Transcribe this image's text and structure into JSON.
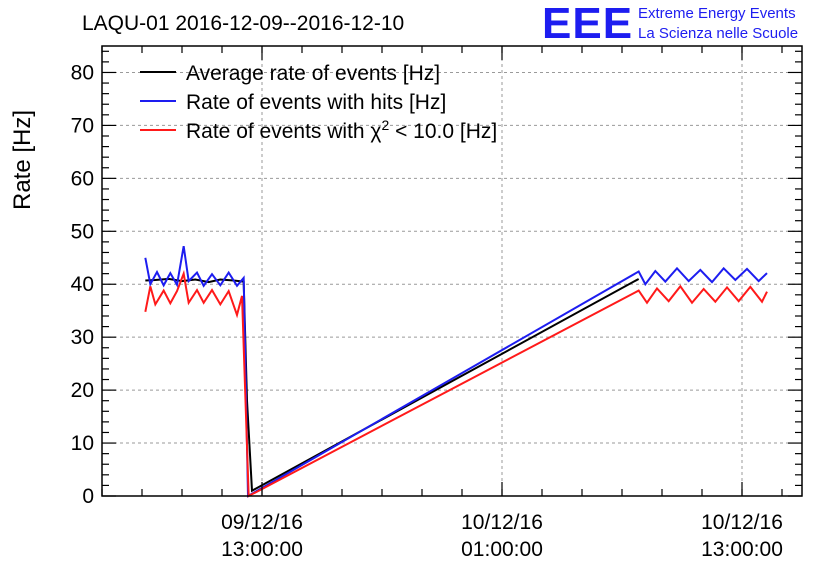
{
  "header": {
    "title": "LAQU-01 2016-12-09--2016-12-10"
  },
  "logo": {
    "mark": "EEE",
    "line1": "Extreme Energy Events",
    "line2": "La Scienza nelle Scuole"
  },
  "chart_data": {
    "type": "line",
    "title": "LAQU-01 2016-12-09--2016-12-10",
    "xlabel": "",
    "ylabel": "Rate [Hz]",
    "ylim": [
      0,
      85
    ],
    "xlim": [
      "2016-12-09 05:00",
      "2016-12-10 16:00"
    ],
    "grid": true,
    "legend_position": "top-left",
    "x_ticks": [
      {
        "value": "2016-12-09 13:00",
        "line1": "09/12/16",
        "line2": "13:00:00"
      },
      {
        "value": "2016-12-10 01:00",
        "line1": "10/12/16",
        "line2": "01:00:00"
      },
      {
        "value": "2016-12-10 13:00",
        "line1": "10/12/16",
        "line2": "13:00:00"
      }
    ],
    "y_ticks": [
      0,
      10,
      20,
      30,
      40,
      50,
      60,
      70,
      80
    ],
    "series": [
      {
        "name": "Average rate of events [Hz]",
        "color": "#000000",
        "points": [
          [
            "2016-12-09 07:10",
            40.7
          ],
          [
            "2016-12-09 07:40",
            40.8
          ],
          [
            "2016-12-09 08:20",
            41.0
          ],
          [
            "2016-12-09 09:00",
            40.6
          ],
          [
            "2016-12-09 09:40",
            40.9
          ],
          [
            "2016-12-09 10:20",
            40.4
          ],
          [
            "2016-12-09 10:55",
            40.9
          ],
          [
            "2016-12-09 11:35",
            40.7
          ],
          [
            "2016-12-09 12:05",
            40.5
          ],
          [
            "2016-12-09 12:15",
            18.0
          ],
          [
            "2016-12-09 12:30",
            1.0
          ],
          [
            "2016-12-10 07:50",
            41.0
          ]
        ]
      },
      {
        "name": "Rate of events with hits [Hz]",
        "color": "#1d1df0",
        "points": [
          [
            "2016-12-09 07:10",
            45.0
          ],
          [
            "2016-12-09 07:25",
            40.0
          ],
          [
            "2016-12-09 07:45",
            42.3
          ],
          [
            "2016-12-09 08:05",
            39.8
          ],
          [
            "2016-12-09 08:25",
            42.1
          ],
          [
            "2016-12-09 08:45",
            39.9
          ],
          [
            "2016-12-09 09:05",
            47.2
          ],
          [
            "2016-12-09 09:20",
            40.6
          ],
          [
            "2016-12-09 09:45",
            42.2
          ],
          [
            "2016-12-09 10:05",
            39.7
          ],
          [
            "2016-12-09 10:30",
            41.9
          ],
          [
            "2016-12-09 10:55",
            39.8
          ],
          [
            "2016-12-09 11:20",
            42.2
          ],
          [
            "2016-12-09 11:45",
            39.7
          ],
          [
            "2016-12-09 12:05",
            41.2
          ],
          [
            "2016-12-09 12:18",
            0.0
          ],
          [
            "2016-12-10 07:50",
            42.4
          ],
          [
            "2016-12-10 08:10",
            40.0
          ],
          [
            "2016-12-10 08:40",
            42.5
          ],
          [
            "2016-12-10 09:10",
            40.5
          ],
          [
            "2016-12-10 09:45",
            43.0
          ],
          [
            "2016-12-10 10:20",
            40.6
          ],
          [
            "2016-12-10 10:55",
            42.7
          ],
          [
            "2016-12-10 11:30",
            40.4
          ],
          [
            "2016-12-10 12:05",
            43.0
          ],
          [
            "2016-12-10 12:40",
            40.8
          ],
          [
            "2016-12-10 13:15",
            42.9
          ],
          [
            "2016-12-10 13:50",
            40.6
          ],
          [
            "2016-12-10 14:15",
            42.1
          ]
        ]
      },
      {
        "name": "Rate of events with χ2 < 10.0 [Hz]",
        "color": "#ff1a1a",
        "points": [
          [
            "2016-12-09 07:10",
            34.8
          ],
          [
            "2016-12-09 07:25",
            39.6
          ],
          [
            "2016-12-09 07:40",
            36.2
          ],
          [
            "2016-12-09 08:05",
            38.8
          ],
          [
            "2016-12-09 08:25",
            36.4
          ],
          [
            "2016-12-09 08:45",
            38.7
          ],
          [
            "2016-12-09 09:05",
            42.0
          ],
          [
            "2016-12-09 09:20",
            36.5
          ],
          [
            "2016-12-09 09:45",
            38.9
          ],
          [
            "2016-12-09 10:05",
            36.5
          ],
          [
            "2016-12-09 10:30",
            38.9
          ],
          [
            "2016-12-09 10:55",
            36.2
          ],
          [
            "2016-12-09 11:20",
            38.7
          ],
          [
            "2016-12-09 11:45",
            34.2
          ],
          [
            "2016-12-09 12:00",
            37.8
          ],
          [
            "2016-12-09 12:20",
            0.0
          ],
          [
            "2016-12-10 07:50",
            38.8
          ],
          [
            "2016-12-10 08:15",
            36.5
          ],
          [
            "2016-12-10 08:45",
            39.2
          ],
          [
            "2016-12-10 09:20",
            36.8
          ],
          [
            "2016-12-10 09:55",
            39.6
          ],
          [
            "2016-12-10 10:30",
            36.5
          ],
          [
            "2016-12-10 11:05",
            39.1
          ],
          [
            "2016-12-10 11:40",
            36.7
          ],
          [
            "2016-12-10 12:15",
            39.4
          ],
          [
            "2016-12-10 12:50",
            36.8
          ],
          [
            "2016-12-10 13:25",
            39.5
          ],
          [
            "2016-12-10 14:00",
            36.7
          ],
          [
            "2016-12-10 14:15",
            38.6
          ]
        ]
      }
    ]
  }
}
